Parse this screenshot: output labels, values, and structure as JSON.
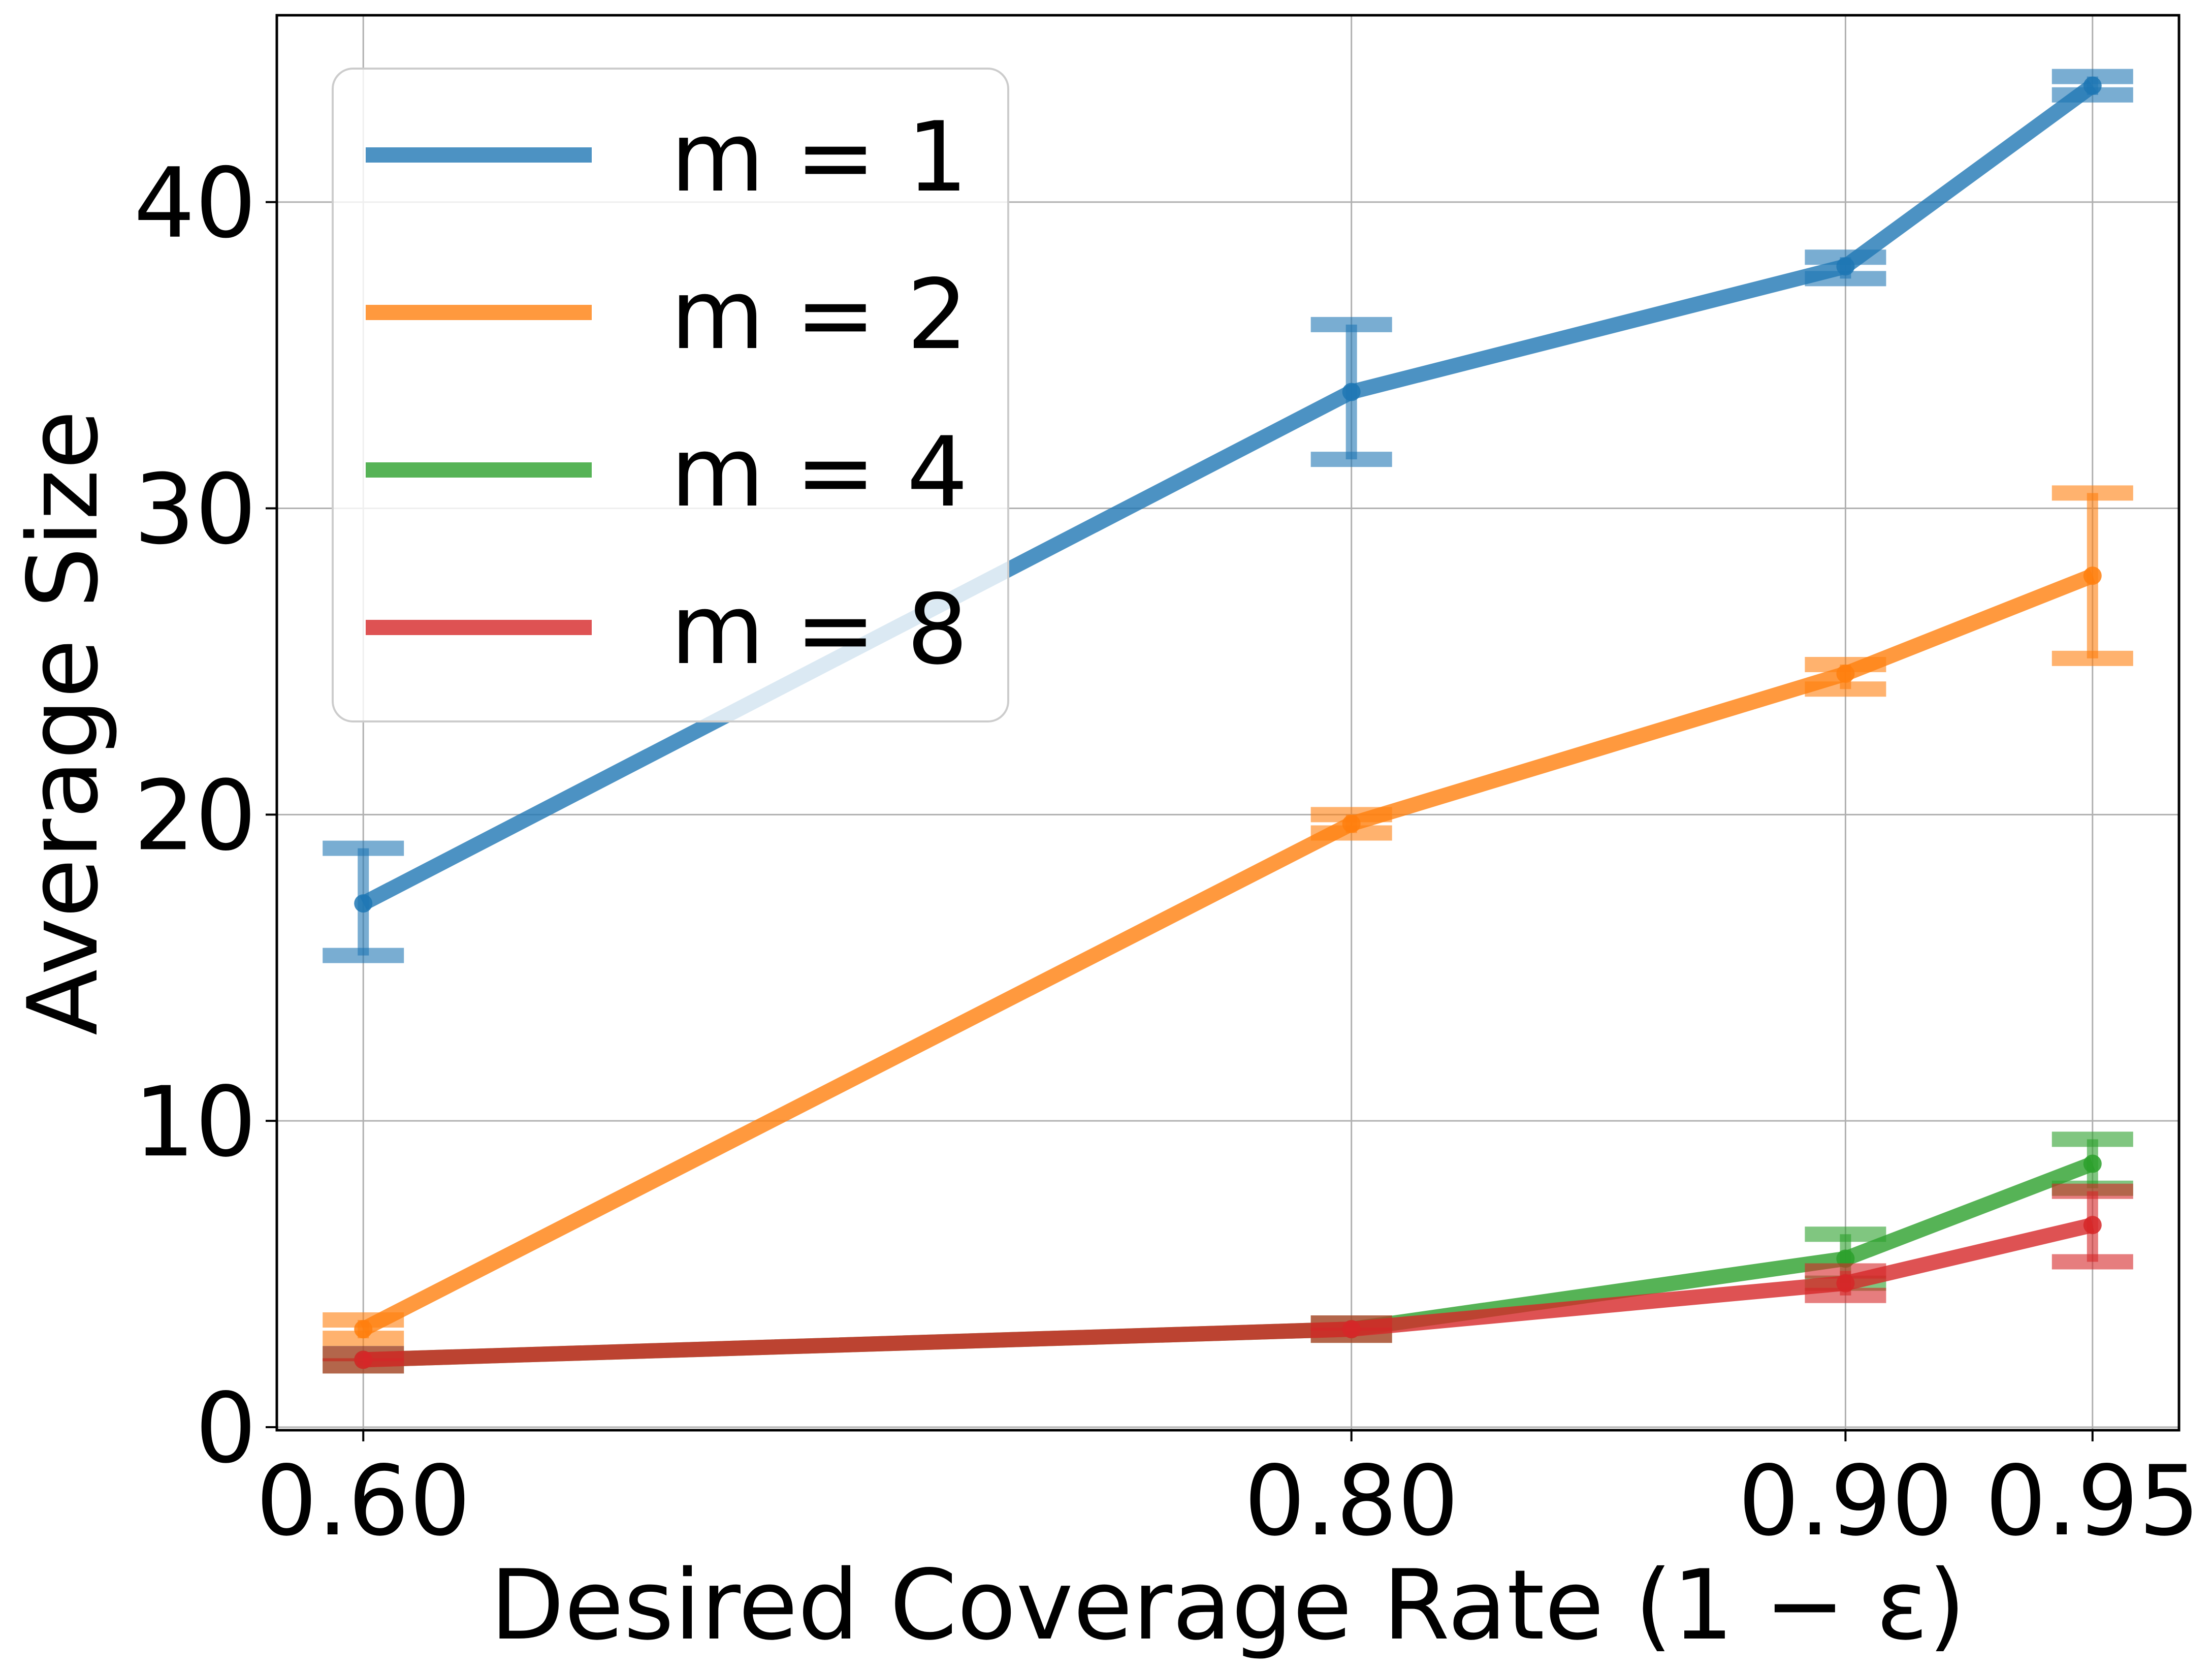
{
  "chart_data": {
    "type": "line",
    "xlabel": "Desired Coverage Rate (1 − ε)",
    "ylabel": "Average Size",
    "x": [
      0.6,
      0.8,
      0.9,
      0.95
    ],
    "x_tick_labels": [
      "0.60",
      "0.80",
      "0.90",
      "0.95"
    ],
    "y_ticks": [
      0,
      10,
      20,
      30,
      40
    ],
    "y_tick_labels": [
      "0",
      "10",
      "20",
      "30",
      "40"
    ],
    "xlim": [
      0.5825,
      0.9675
    ],
    "ylim": [
      -0.1,
      46.1
    ],
    "grid": true,
    "legend_position": "upper-left",
    "series": [
      {
        "name": "m = 1",
        "color": "#1f77b4",
        "values": [
          17.1,
          33.8,
          37.9,
          43.8
        ],
        "err_low": [
          15.4,
          31.6,
          37.5,
          43.5
        ],
        "err_high": [
          18.9,
          36.0,
          38.2,
          44.1
        ]
      },
      {
        "name": "m = 2",
        "color": "#ff7f0e",
        "values": [
          3.2,
          19.7,
          24.6,
          27.8
        ],
        "err_low": [
          2.9,
          19.4,
          24.1,
          25.1
        ],
        "err_high": [
          3.5,
          20.0,
          24.9,
          30.5
        ]
      },
      {
        "name": "m = 4",
        "color": "#2ca02c",
        "values": [
          2.2,
          3.2,
          5.5,
          8.6
        ],
        "err_low": [
          2.0,
          3.0,
          4.7,
          7.8
        ],
        "err_high": [
          2.4,
          3.4,
          6.3,
          9.4
        ]
      },
      {
        "name": "m = 8",
        "color": "#d62728",
        "values": [
          2.2,
          3.2,
          4.7,
          6.6
        ],
        "err_low": [
          2.0,
          3.0,
          4.3,
          5.4
        ],
        "err_high": [
          2.4,
          3.4,
          5.1,
          7.7
        ]
      }
    ]
  }
}
